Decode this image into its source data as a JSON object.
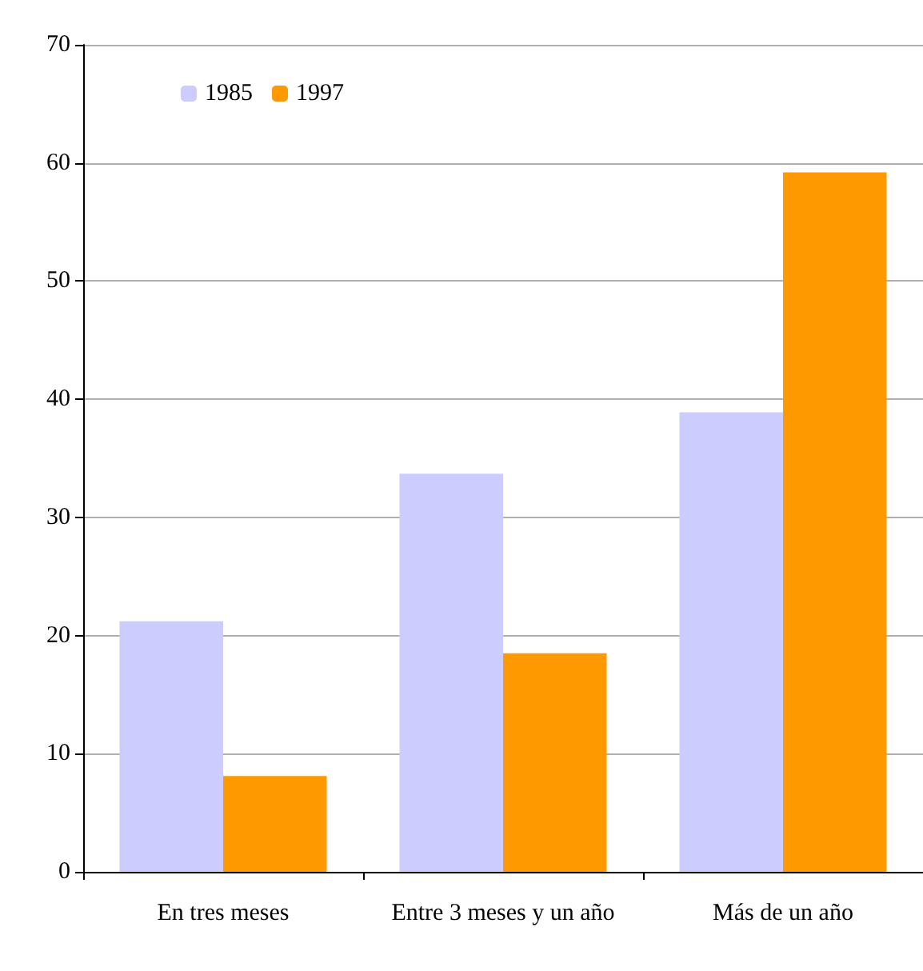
{
  "chart_data": {
    "type": "bar",
    "categories": [
      "En tres meses",
      "Entre 3 meses y un año",
      "Más de un año"
    ],
    "series": [
      {
        "name": "1985",
        "color": "#ccccff",
        "values": [
          21.2,
          33.7,
          38.9
        ]
      },
      {
        "name": "1997",
        "color": "#ff9900",
        "values": [
          8.1,
          18.5,
          59.2
        ]
      }
    ],
    "ylim": [
      0,
      70
    ],
    "yticks": [
      0,
      10,
      20,
      30,
      40,
      50,
      60,
      70
    ],
    "grid": "y",
    "legend": "top left"
  }
}
